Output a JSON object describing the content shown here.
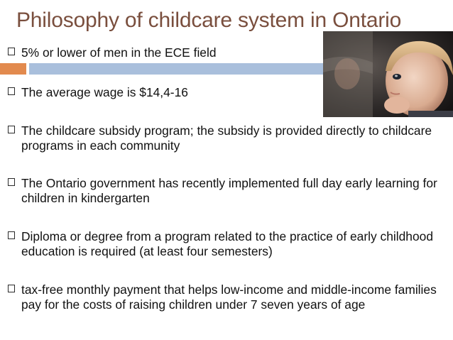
{
  "slide": {
    "title": "Philosophy of childcare system in Ontario",
    "colors": {
      "title": "#7a4f3e",
      "accent_orange": "#e28a4e",
      "accent_blue": "#a9bfdc",
      "text": "#111111"
    },
    "image": {
      "icon": "child-photo",
      "description_visible": false
    },
    "bullets": [
      {
        "text": "5% or lower of men in the ECE field"
      },
      {
        "text": "The average wage is $14,4-16"
      },
      {
        "text": "The childcare subsidy program; the subsidy is provided directly to childcare programs in each community"
      },
      {
        "text": "The Ontario government has recently implemented full day early learning for children in kindergarten"
      },
      {
        "text": "Diploma or degree from a program related to the practice of early childhood education is required (at least four semesters)"
      },
      {
        "text": "tax-free monthly payment that helps low-income and middle-income families pay for the costs of raising children under 7 seven years of age"
      }
    ]
  }
}
